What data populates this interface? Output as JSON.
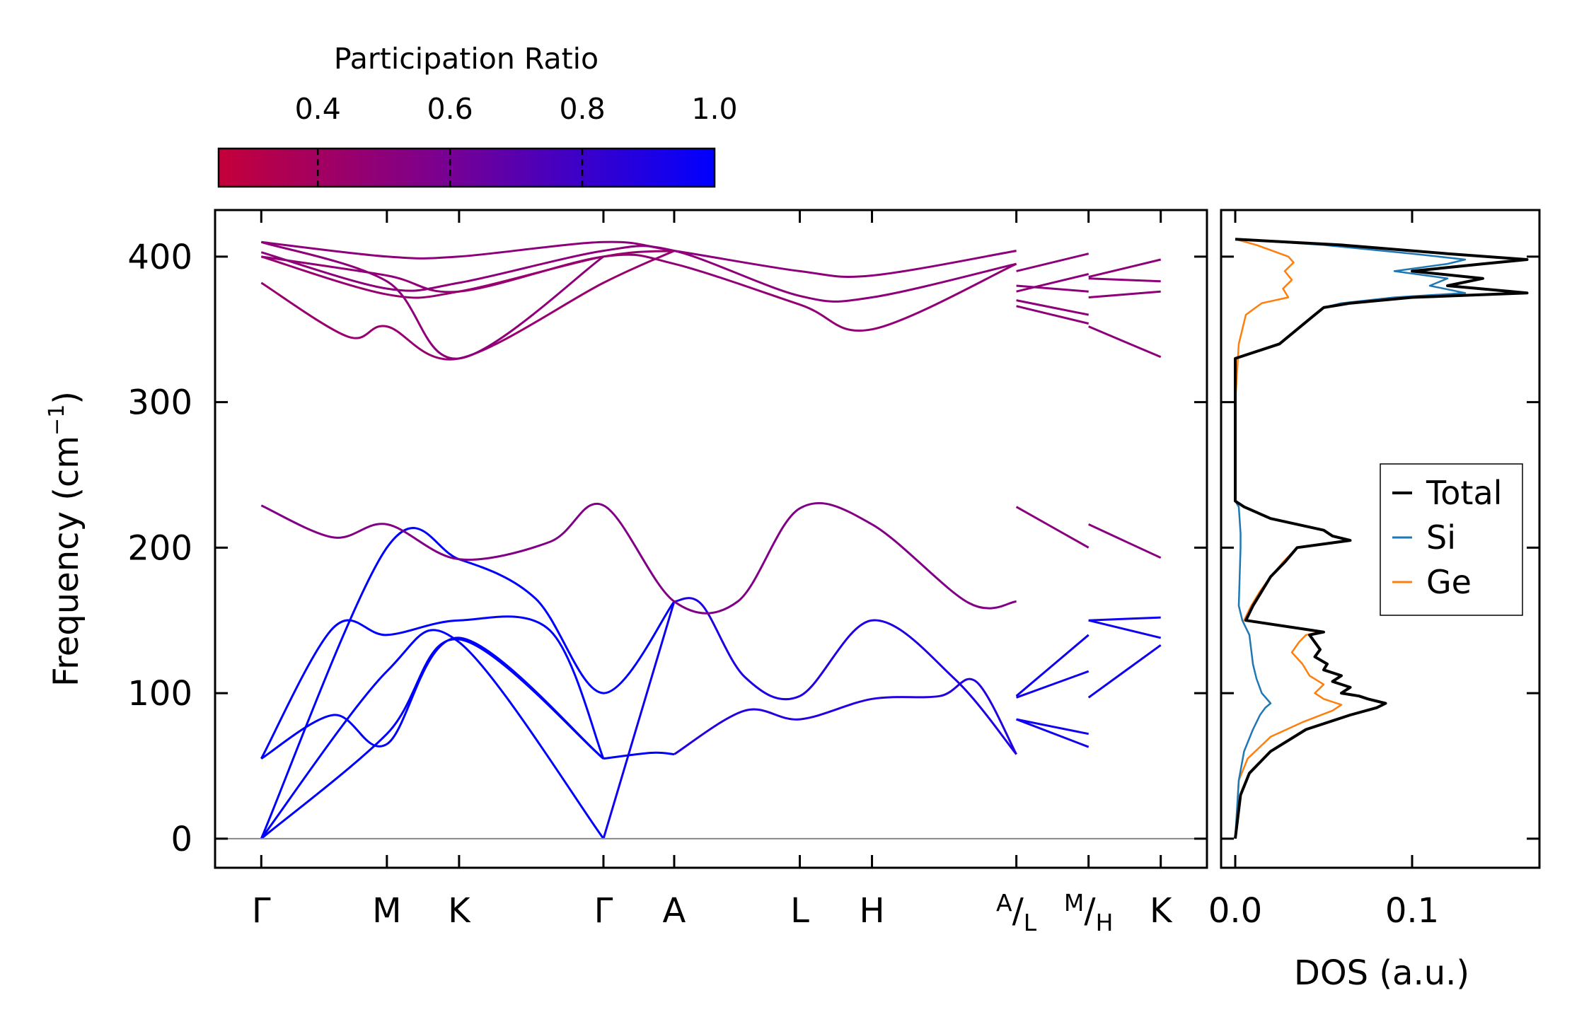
{
  "chart_data": [
    {
      "type": "line",
      "name": "phonon_dispersion",
      "ylabel_main": "Frequency (cm",
      "ylabel_sup": "−1",
      "ylabel_close": ")",
      "ylim": [
        -20,
        432
      ],
      "yticks": [
        0,
        100,
        200,
        300,
        400
      ],
      "ytick_labels": [
        "0",
        "100",
        "200",
        "300",
        "400"
      ],
      "kpath": [
        {
          "pos": 0.0,
          "label": "Γ"
        },
        {
          "pos": 0.87,
          "label": "M"
        },
        {
          "pos": 1.37,
          "label": "K"
        },
        {
          "pos": 2.37,
          "label": "Γ"
        },
        {
          "pos": 2.86,
          "label": "A"
        },
        {
          "pos": 3.73,
          "label": "L"
        },
        {
          "pos": 4.23,
          "label": "H"
        },
        {
          "pos": 5.23,
          "label": "A",
          "sub": "L",
          "split": true
        },
        {
          "pos": 5.73,
          "label": "M",
          "sub": "H",
          "split": true
        },
        {
          "pos": 6.23,
          "label": "K"
        }
      ],
      "xlim": [
        -0.32,
        6.55
      ],
      "branches": [
        {
          "pr": 1.0,
          "x": [
            0,
            0.87,
            1.37,
            1.9,
            2.37,
            2.86
          ],
          "y": [
            0,
            200,
            192,
            165,
            100,
            163
          ]
        },
        {
          "pr": 1.0,
          "x": [
            0,
            0.87,
            1.37,
            2.37
          ],
          "y": [
            0,
            115,
            135,
            0
          ]
        },
        {
          "pr": 1.0,
          "x": [
            0,
            0.87,
            1.37,
            2.37
          ],
          "y": [
            0,
            72,
            137,
            55
          ]
        },
        {
          "pr": 1.0,
          "x": [
            0,
            0.5,
            0.87,
            1.37,
            2.0,
            2.37
          ],
          "y": [
            55,
            145,
            140,
            150,
            143,
            55
          ]
        },
        {
          "pr": 1.0,
          "x": [
            0,
            0.5,
            0.87,
            1.37,
            2.37
          ],
          "y": [
            55,
            85,
            65,
            138,
            55
          ]
        },
        {
          "pr": 1.0,
          "x": [
            2.37,
            2.7,
            2.86
          ],
          "y": [
            55,
            59,
            58
          ]
        },
        {
          "pr": 0.95,
          "x": [
            2.37,
            2.86
          ],
          "y": [
            0,
            163
          ]
        },
        {
          "pr": 0.9,
          "x": [
            2.86,
            3.05,
            3.35,
            3.73,
            4.23,
            4.8,
            5.23
          ],
          "y": [
            163,
            161,
            111,
            98,
            150,
            110,
            58
          ]
        },
        {
          "pr": 0.88,
          "x": [
            2.86,
            3.35,
            3.73,
            4.23,
            4.7,
            4.95,
            5.23
          ],
          "y": [
            58,
            88,
            82,
            96,
            98,
            108,
            58
          ]
        },
        {
          "pr": 0.55,
          "x": [
            0,
            0.5,
            0.87,
            1.37,
            2.0,
            2.37,
            2.86,
            3.3,
            3.73,
            4.23,
            4.9,
            5.23
          ],
          "y": [
            229,
            207,
            216,
            192,
            204,
            229,
            163,
            163,
            227,
            216,
            162,
            163
          ]
        },
        {
          "pr": 0.5,
          "x": [
            0,
            0.87,
            1.37,
            2.37,
            2.86,
            3.73,
            4.23,
            5.23
          ],
          "y": [
            410,
            400,
            400,
            410,
            404,
            390,
            387,
            404
          ]
        },
        {
          "pr": 0.5,
          "x": [
            0,
            0.87,
            1.37,
            2.37,
            2.86,
            3.73,
            4.23,
            5.23
          ],
          "y": [
            403,
            378,
            382,
            404,
            404,
            373,
            372,
            395
          ]
        },
        {
          "pr": 0.48,
          "x": [
            0,
            0.87,
            1.37,
            2.37,
            2.86,
            3.73,
            4.23,
            5.23
          ],
          "y": [
            400,
            387,
            376,
            400,
            395,
            367,
            350,
            395
          ]
        },
        {
          "pr": 0.45,
          "x": [
            0,
            0.87,
            1.37,
            2.37,
            2.86
          ],
          "y": [
            400,
            374,
            376,
            400,
            404
          ]
        },
        {
          "pr": 0.45,
          "x": [
            0,
            0.6,
            0.87,
            1.37,
            2.37,
            2.86
          ],
          "y": [
            382,
            345,
            352,
            330,
            382,
            404
          ]
        },
        {
          "pr": 0.5,
          "x": [
            0,
            0.87,
            1.37,
            2.37
          ],
          "y": [
            410,
            383,
            330,
            400
          ]
        },
        {
          "pr": 0.52,
          "x": [
            5.23,
            5.73
          ],
          "y": [
            228,
            200
          ]
        },
        {
          "pr": 0.5,
          "x": [
            5.23,
            5.73
          ],
          "y": [
            390,
            402
          ]
        },
        {
          "pr": 0.5,
          "x": [
            5.23,
            5.73
          ],
          "y": [
            376,
            388
          ]
        },
        {
          "pr": 0.5,
          "x": [
            5.23,
            5.73
          ],
          "y": [
            380,
            376
          ]
        },
        {
          "pr": 0.5,
          "x": [
            5.23,
            5.73
          ],
          "y": [
            370,
            360
          ]
        },
        {
          "pr": 0.5,
          "x": [
            5.23,
            5.73
          ],
          "y": [
            366,
            354
          ]
        },
        {
          "pr": 0.95,
          "x": [
            5.23,
            5.73
          ],
          "y": [
            98,
            140
          ]
        },
        {
          "pr": 0.95,
          "x": [
            5.23,
            5.73
          ],
          "y": [
            97,
            115
          ]
        },
        {
          "pr": 0.95,
          "x": [
            5.23,
            5.73
          ],
          "y": [
            82,
            72
          ]
        },
        {
          "pr": 0.95,
          "x": [
            5.23,
            5.73
          ],
          "y": [
            82,
            63
          ]
        },
        {
          "pr": 0.52,
          "x": [
            5.73,
            6.23
          ],
          "y": [
            216,
            193
          ]
        },
        {
          "pr": 0.5,
          "x": [
            5.73,
            6.23
          ],
          "y": [
            386,
            398
          ]
        },
        {
          "pr": 0.5,
          "x": [
            5.73,
            6.23
          ],
          "y": [
            385,
            383
          ]
        },
        {
          "pr": 0.5,
          "x": [
            5.73,
            6.23
          ],
          "y": [
            372,
            376
          ]
        },
        {
          "pr": 0.5,
          "x": [
            5.73,
            6.23
          ],
          "y": [
            352,
            331
          ]
        },
        {
          "pr": 0.95,
          "x": [
            5.73,
            6.23
          ],
          "y": [
            150,
            152
          ]
        },
        {
          "pr": 0.95,
          "x": [
            5.73,
            6.23
          ],
          "y": [
            150,
            138
          ]
        },
        {
          "pr": 0.95,
          "x": [
            5.73,
            6.23
          ],
          "y": [
            97,
            133
          ]
        }
      ]
    },
    {
      "type": "line",
      "name": "density_of_states",
      "xlabel": "DOS (a.u.)",
      "xlim": [
        -0.008,
        0.172
      ],
      "xticks": [
        0.0,
        0.1
      ],
      "xtick_labels": [
        "0.0",
        "0.1"
      ],
      "ylim": [
        -20,
        432
      ],
      "legend_position": "center-right",
      "series": [
        {
          "name": "Total",
          "color": "#000000",
          "freq": [
            0,
            30,
            45,
            60,
            75,
            85,
            90,
            93,
            96,
            98,
            100,
            104,
            108,
            112,
            116,
            120,
            125,
            130,
            135,
            140,
            142,
            150,
            160,
            170,
            180,
            190,
            200,
            205,
            208,
            212,
            220,
            228,
            232,
            300,
            330,
            340,
            350,
            360,
            365,
            368,
            372,
            375,
            380,
            385,
            390,
            395,
            398,
            402,
            408,
            412
          ],
          "dos": [
            0,
            0.003,
            0.008,
            0.02,
            0.04,
            0.065,
            0.08,
            0.085,
            0.075,
            0.07,
            0.06,
            0.065,
            0.055,
            0.06,
            0.05,
            0.052,
            0.045,
            0.048,
            0.045,
            0.042,
            0.05,
            0.006,
            0.01,
            0.015,
            0.02,
            0.028,
            0.035,
            0.065,
            0.055,
            0.05,
            0.02,
            0.005,
            0.0,
            0.0,
            0.0,
            0.025,
            0.035,
            0.045,
            0.05,
            0.065,
            0.1,
            0.165,
            0.12,
            0.14,
            0.1,
            0.14,
            0.165,
            0.12,
            0.06,
            0.0
          ]
        },
        {
          "name": "Si",
          "color": "#1f77b4",
          "freq": [
            0,
            40,
            60,
            75,
            85,
            90,
            93,
            100,
            110,
            120,
            130,
            140,
            150,
            160,
            200,
            210,
            228,
            232,
            300,
            330,
            340,
            350,
            360,
            365,
            368,
            372,
            375,
            380,
            385,
            390,
            395,
            398,
            402,
            408,
            412
          ],
          "dos": [
            0,
            0.002,
            0.005,
            0.01,
            0.014,
            0.017,
            0.02,
            0.015,
            0.012,
            0.01,
            0.009,
            0.008,
            0.004,
            0.002,
            0.003,
            0.003,
            0.002,
            0.0,
            0.0,
            0.0,
            0.025,
            0.035,
            0.045,
            0.05,
            0.06,
            0.09,
            0.13,
            0.11,
            0.12,
            0.09,
            0.12,
            0.13,
            0.1,
            0.05,
            0.0
          ]
        },
        {
          "name": "Ge",
          "color": "#ff7f0e",
          "freq": [
            0,
            40,
            55,
            70,
            80,
            88,
            92,
            96,
            100,
            106,
            112,
            120,
            128,
            135,
            140,
            142,
            150,
            160,
            170,
            180,
            190,
            200,
            205,
            208,
            212,
            220,
            228,
            232,
            300,
            340,
            360,
            368,
            372,
            378,
            384,
            390,
            396,
            400,
            408,
            412
          ],
          "dos": [
            0,
            0.002,
            0.007,
            0.02,
            0.038,
            0.055,
            0.06,
            0.05,
            0.045,
            0.05,
            0.042,
            0.038,
            0.032,
            0.036,
            0.04,
            0.048,
            0.005,
            0.009,
            0.014,
            0.02,
            0.027,
            0.035,
            0.063,
            0.055,
            0.05,
            0.02,
            0.005,
            0.0,
            0.0,
            0.002,
            0.006,
            0.015,
            0.03,
            0.027,
            0.032,
            0.028,
            0.033,
            0.03,
            0.012,
            0.0
          ]
        }
      ]
    },
    {
      "type": "colorbar",
      "name": "participation_ratio",
      "title": "Participation Ratio",
      "range": [
        0.25,
        1.0
      ],
      "ticks": [
        0.4,
        0.6,
        0.8,
        1.0
      ],
      "tick_labels": [
        "0.4",
        "0.6",
        "0.8",
        "1.0"
      ],
      "color_low": "#c4003a",
      "color_mid": "#7a0090",
      "color_high": "#0000ff"
    }
  ]
}
